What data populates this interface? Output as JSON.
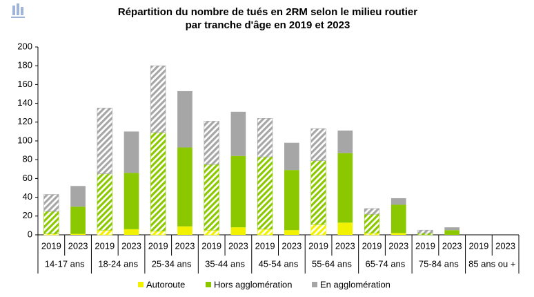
{
  "chart_data": {
    "type": "stacked_bar",
    "title": [
      "Répartition du nombre de tués en 2RM selon le milieu routier",
      "par tranche d'âge en 2019 et 2023"
    ],
    "groups": [
      "14-17 ans",
      "18-24 ans",
      "25-34 ans",
      "35-44 ans",
      "45-54 ans",
      "55-64 ans",
      "65-74 ans",
      "75-84 ans",
      "85 ans ou +"
    ],
    "categories": [
      "2019",
      "2023",
      "2019",
      "2023",
      "2019",
      "2023",
      "2019",
      "2023",
      "2019",
      "2023",
      "2019",
      "2023",
      "2019",
      "2023",
      "2019",
      "2023",
      "2019",
      "2023"
    ],
    "hatched_category": "2019",
    "series": [
      {
        "name": "Autoroute",
        "color": "#f2f200",
        "values": [
          1,
          1,
          5,
          6,
          4,
          9,
          5,
          8,
          6,
          5,
          11,
          13,
          2,
          2,
          0,
          0,
          0,
          0
        ]
      },
      {
        "name": "Hors agglomération",
        "color": "#8cc800",
        "values": [
          24,
          29,
          60,
          60,
          105,
          84,
          70,
          76,
          77,
          64,
          68,
          74,
          20,
          30,
          2,
          5,
          0,
          0
        ]
      },
      {
        "name": "En agglomération",
        "color": "#a6a6a6",
        "values": [
          18,
          22,
          70,
          44,
          71,
          60,
          46,
          47,
          41,
          29,
          34,
          24,
          6,
          7,
          3,
          3,
          0,
          0
        ]
      }
    ],
    "ylim": [
      0,
      200
    ],
    "yticks": [
      0,
      20,
      40,
      60,
      80,
      100,
      120,
      140,
      160,
      180,
      200
    ],
    "legend": "bottom"
  }
}
